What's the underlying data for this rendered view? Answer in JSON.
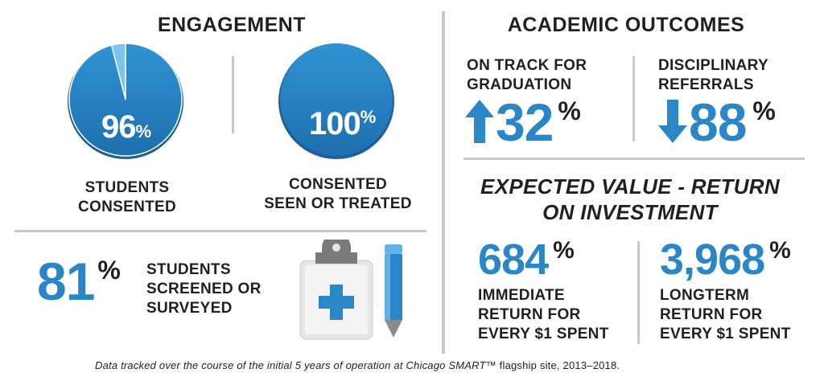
{
  "engagement": {
    "title": "ENGAGEMENT",
    "consented": {
      "value": "96",
      "unit": "%",
      "fraction": 0.96,
      "label_line1": "STUDENTS",
      "label_line2": "CONSENTED"
    },
    "treated": {
      "value": "100",
      "unit": "%",
      "fraction": 1.0,
      "label_line1": "CONSENTED",
      "label_line2": "SEEN OR TREATED"
    },
    "screened": {
      "value": "81",
      "unit": "%",
      "label_line1": "STUDENTS",
      "label_line2": "SCREENED OR",
      "label_line3": "SURVEYED"
    }
  },
  "academic": {
    "title": "ACADEMIC OUTCOMES",
    "on_track": {
      "label_line1": "ON TRACK FOR",
      "label_line2": "GRADUATION",
      "value": "32",
      "unit": "%",
      "direction": "up"
    },
    "disciplinary": {
      "label_line1": "DISCIPLINARY",
      "label_line2": "REFERRALS",
      "value": "88",
      "unit": "%",
      "direction": "down"
    }
  },
  "roi": {
    "title_line1": "EXPECTED VALUE - RETURN",
    "title_line2": "ON INVESTMENT",
    "immediate": {
      "value": "684",
      "unit": "%",
      "label_line1": "IMMEDIATE",
      "label_line2": "RETURN FOR",
      "label_line3": "EVERY $1 SPENT"
    },
    "longterm": {
      "value": "3,968",
      "unit": "%",
      "label_line1": "LONGTERM",
      "label_line2": "RETURN FOR",
      "label_line3": "EVERY $1 SPENT"
    }
  },
  "footer": {
    "text_italic": "Data tracked over the course of the initial 5 years of operation at Chicago SMART™",
    "text_plain": " flagship site, 2013–2018."
  },
  "icons": [
    "clipboard-icon",
    "medical-cross-icon",
    "pencil-icon",
    "arrow-up-icon",
    "arrow-down-icon"
  ],
  "colors": {
    "accent": "#2a86c6",
    "accent_light": "#5fb3e6",
    "text": "#231f20",
    "divider": "#c8c8c8"
  }
}
